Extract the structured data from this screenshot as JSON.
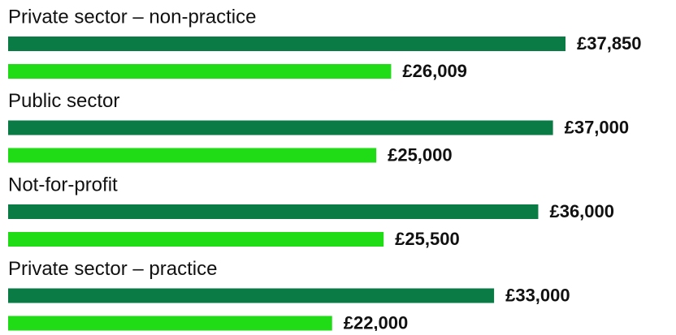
{
  "chart_data": {
    "type": "bar",
    "orientation": "horizontal",
    "categories": [
      "Private sector – non-practice",
      "Public sector",
      "Not-for-profit",
      "Private sector – practice"
    ],
    "series": [
      {
        "color": "#0b7b45",
        "values": [
          37850,
          37000,
          36000,
          33000
        ],
        "value_labels": [
          "£37,850",
          "£37,000",
          "£36,000",
          "£33,000"
        ]
      },
      {
        "color": "#1fdc16",
        "values": [
          26009,
          25000,
          25500,
          22000
        ],
        "value_labels": [
          "£26,009",
          "£25,000",
          "£25,500",
          "£22,000"
        ]
      }
    ]
  }
}
